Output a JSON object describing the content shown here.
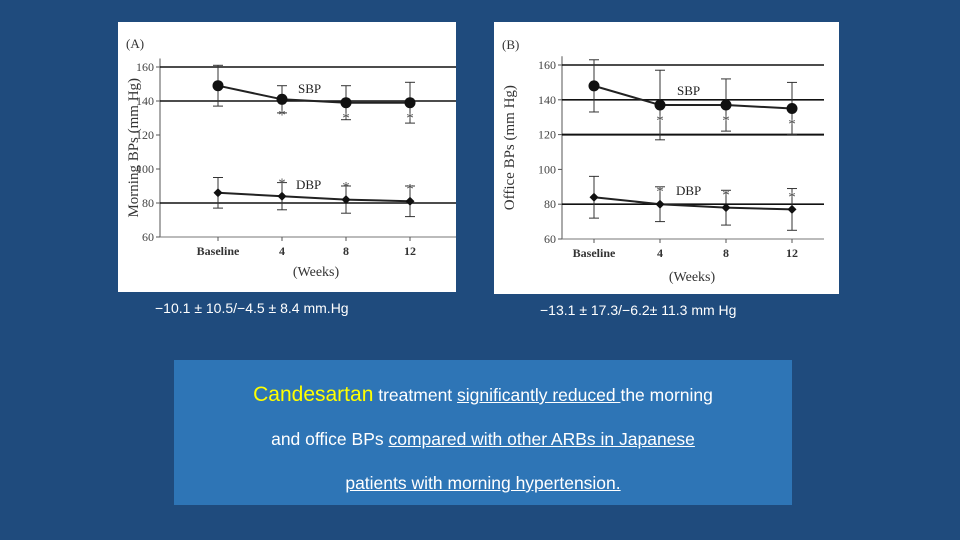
{
  "chart_data": [
    {
      "type": "line",
      "panel_label": "(A)",
      "ylabel": "Morning BPs (mm Hg)",
      "xlabel": "(Weeks)",
      "categories": [
        "Baseline",
        "4",
        "8",
        "12"
      ],
      "yticks": [
        60,
        80,
        100,
        120,
        140,
        160
      ],
      "ylim": [
        60,
        165
      ],
      "series": [
        {
          "name": "SBP",
          "marker": "circle",
          "values": [
            149,
            141,
            139,
            139
          ],
          "error": [
            12,
            8,
            10,
            12
          ],
          "significant": [
            false,
            true,
            true,
            true
          ]
        },
        {
          "name": "DBP",
          "marker": "diamond",
          "values": [
            86,
            84,
            82,
            81
          ],
          "error": [
            9,
            8,
            8,
            9
          ],
          "significant": [
            false,
            true,
            true,
            true
          ]
        }
      ],
      "significance_marker": "*",
      "caption": "−10.1 ± 10.5/−4.5 ± 8.4 mm.Hg"
    },
    {
      "type": "line",
      "panel_label": "(B)",
      "ylabel": "Office BPs (mm Hg)",
      "xlabel": "(Weeks)",
      "categories": [
        "Baseline",
        "4",
        "8",
        "12"
      ],
      "yticks": [
        60,
        80,
        100,
        120,
        140,
        160
      ],
      "ylim": [
        60,
        165
      ],
      "series": [
        {
          "name": "SBP",
          "marker": "circle",
          "values": [
            148,
            137,
            137,
            135
          ],
          "error": [
            15,
            20,
            15,
            15
          ],
          "significant": [
            false,
            true,
            true,
            true
          ]
        },
        {
          "name": "DBP",
          "marker": "diamond",
          "values": [
            84,
            80,
            78,
            77
          ],
          "error": [
            12,
            10,
            10,
            12
          ],
          "significant": [
            false,
            true,
            true,
            true
          ]
        }
      ],
      "significance_marker": "*",
      "caption": "−13.1 ± 17.3/−6.2± 11.3 mm Hg"
    }
  ],
  "summary": {
    "drug": "Candesartan",
    "seg1": " treatment ",
    "u1": "significantly reduced ",
    "seg2": "the morning",
    "seg3": "and office BPs ",
    "u2": "compared with other ARBs in Japanese",
    "u3": "patients with morning hypertension."
  },
  "colors": {
    "background": "#1f4b7d",
    "summary_box": "#2e75b6",
    "drug_highlight": "#ffff00"
  }
}
